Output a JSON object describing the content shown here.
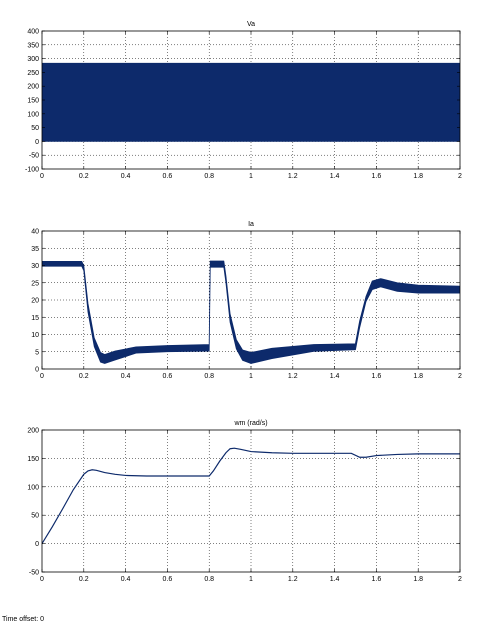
{
  "footer": {
    "time_offset": "Time offset: 0"
  },
  "colors": {
    "trace": "#0d2a6b",
    "grid": "#000000",
    "axis": "#000000"
  },
  "chart_data": [
    {
      "type": "line",
      "title": "Va",
      "xlabel": "",
      "ylabel": "",
      "xlim": [
        0,
        2
      ],
      "ylim": [
        -100,
        400
      ],
      "xticks": [
        0,
        0.2,
        0.4,
        0.6,
        0.8,
        1,
        1.2,
        1.4,
        1.6,
        1.8,
        2
      ],
      "xtick_labels": [
        "0",
        "0.2",
        "0.4",
        "0.6",
        "0.8",
        "1",
        "1.2",
        "1.4",
        "1.6",
        "1.8",
        "2"
      ],
      "yticks": [
        -100,
        -50,
        0,
        50,
        100,
        150,
        200,
        250,
        300,
        350,
        400
      ],
      "ytick_labels": [
        "-100",
        "-50",
        "0",
        "50",
        "100",
        "150",
        "200",
        "250",
        "300",
        "350",
        "400"
      ],
      "grid": true,
      "style": "pwm_band",
      "series": [
        {
          "x": [
            0,
            2
          ],
          "upper": [
            283,
            283
          ],
          "lower": [
            0,
            0
          ]
        }
      ]
    },
    {
      "type": "line",
      "title": "Ia",
      "xlabel": "",
      "ylabel": "",
      "xlim": [
        0,
        2
      ],
      "ylim": [
        0,
        40
      ],
      "xticks": [
        0,
        0.2,
        0.4,
        0.6,
        0.8,
        1,
        1.2,
        1.4,
        1.6,
        1.8,
        2
      ],
      "xtick_labels": [
        "0",
        "0.2",
        "0.4",
        "0.6",
        "0.8",
        "1",
        "1.2",
        "1.4",
        "1.6",
        "1.8",
        "2"
      ],
      "yticks": [
        0,
        5,
        10,
        15,
        20,
        25,
        30,
        35,
        40
      ],
      "ytick_labels": [
        "0",
        "5",
        "10",
        "15",
        "20",
        "25",
        "30",
        "35",
        "40"
      ],
      "grid": true,
      "style": "ripple_band",
      "series": [
        {
          "x": [
            0,
            0.19,
            0.2,
            0.22,
            0.25,
            0.28,
            0.3,
            0.35,
            0.45,
            0.6,
            0.8,
            0.8,
            0.805,
            0.87,
            0.88,
            0.9,
            0.93,
            0.96,
            1.0,
            1.1,
            1.3,
            1.5,
            1.5,
            1.52,
            1.55,
            1.58,
            1.62,
            1.7,
            1.8,
            2
          ],
          "upper": [
            31.2,
            31.2,
            30.0,
            19.0,
            9.0,
            4.8,
            4.2,
            5.2,
            6.4,
            6.8,
            7.1,
            8.0,
            31.3,
            31.3,
            27.0,
            16.0,
            8.5,
            5.5,
            4.8,
            6.0,
            7.1,
            7.3,
            7.5,
            14.0,
            21.0,
            25.5,
            26.2,
            25.0,
            24.3,
            24.0
          ],
          "lower": [
            29.8,
            29.8,
            28.5,
            16.5,
            6.5,
            2.0,
            1.6,
            2.6,
            4.6,
            5.0,
            5.2,
            5.2,
            29.5,
            29.5,
            25.0,
            13.5,
            5.8,
            2.5,
            1.6,
            3.0,
            5.1,
            5.6,
            5.6,
            12.0,
            19.5,
            23.0,
            23.8,
            22.5,
            22.0,
            22.0
          ]
        }
      ]
    },
    {
      "type": "line",
      "title": "wm (rad/s)",
      "xlabel": "",
      "ylabel": "",
      "xlim": [
        0,
        2
      ],
      "ylim": [
        -50,
        200
      ],
      "xticks": [
        0,
        0.2,
        0.4,
        0.6,
        0.8,
        1,
        1.2,
        1.4,
        1.6,
        1.8,
        2
      ],
      "xtick_labels": [
        "0",
        "0.2",
        "0.4",
        "0.6",
        "0.8",
        "1",
        "1.2",
        "1.4",
        "1.6",
        "1.8",
        "2"
      ],
      "yticks": [
        -50,
        0,
        50,
        100,
        150,
        200
      ],
      "ytick_labels": [
        "-50",
        "0",
        "50",
        "100",
        "150",
        "200"
      ],
      "grid": true,
      "style": "line",
      "series": [
        {
          "x": [
            0,
            0.05,
            0.1,
            0.15,
            0.2,
            0.22,
            0.24,
            0.26,
            0.3,
            0.35,
            0.4,
            0.5,
            0.6,
            0.7,
            0.8,
            0.82,
            0.85,
            0.88,
            0.9,
            0.92,
            0.95,
            1.0,
            1.1,
            1.2,
            1.3,
            1.4,
            1.48,
            1.52,
            1.55,
            1.6,
            1.7,
            1.8,
            1.9,
            2
          ],
          "y": [
            0,
            30,
            62,
            95,
            122,
            128,
            130,
            129,
            125,
            122,
            120,
            119,
            119,
            119,
            119,
            128,
            145,
            160,
            167,
            168,
            166,
            162,
            160,
            159,
            159,
            159,
            159,
            152,
            152,
            155,
            157,
            158,
            158,
            158
          ]
        }
      ]
    }
  ]
}
